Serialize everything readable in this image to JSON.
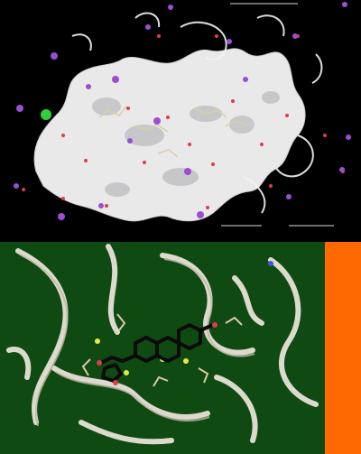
{
  "figure": {
    "top_panel": {
      "background": "#000000",
      "surface_color": "#e9e9ea",
      "ion_color": "#9a4fd0",
      "highlight_ion_color": "#2fcf3a",
      "water_color": "#d8404a"
    },
    "bottom_panel": {
      "background": "#0f4a12",
      "ribbon_color": "#e8e2d8",
      "ligand_color": "#0a0a0a",
      "sulfur_color": "#e6e64a"
    },
    "side_bar": {
      "color": "#ff6a00"
    }
  }
}
